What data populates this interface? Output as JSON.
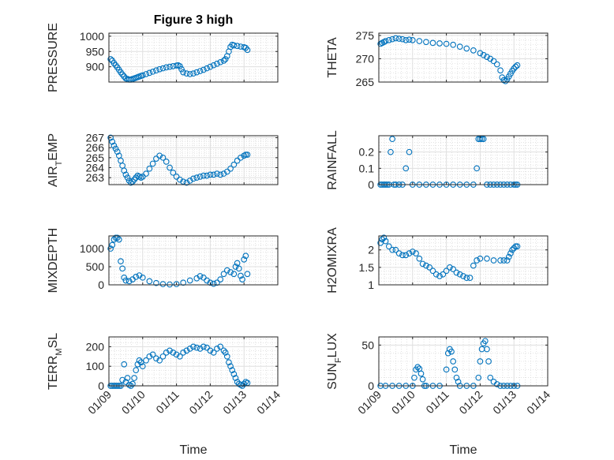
{
  "figure_title": "Figure 3 high",
  "x_axis": {
    "label": "Time",
    "ticks": [
      "01/09",
      "01/10",
      "01/11",
      "01/12",
      "01/13",
      "01/14"
    ],
    "xlim": [
      9,
      14
    ]
  },
  "marker_color": "#0072BD",
  "chart_data": [
    {
      "type": "scatter",
      "ylabel": "PRESSURE",
      "yticks": [
        900,
        950,
        1000
      ],
      "ylim": [
        850,
        1010
      ],
      "x": [
        9.05,
        9.1,
        9.15,
        9.2,
        9.25,
        9.3,
        9.35,
        9.4,
        9.45,
        9.5,
        9.55,
        9.6,
        9.65,
        9.7,
        9.75,
        9.8,
        9.85,
        9.9,
        9.95,
        10.0,
        10.1,
        10.2,
        10.3,
        10.4,
        10.5,
        10.6,
        10.7,
        10.8,
        10.9,
        11.0,
        11.05,
        11.1,
        11.15,
        11.2,
        11.3,
        11.4,
        11.5,
        11.6,
        11.7,
        11.8,
        11.9,
        12.0,
        12.1,
        12.2,
        12.3,
        12.4,
        12.45,
        12.5,
        12.55,
        12.6,
        12.65,
        12.7,
        12.8,
        12.9,
        13.0,
        13.05,
        13.1
      ],
      "y": [
        925,
        920,
        912,
        905,
        898,
        890,
        882,
        875,
        868,
        862,
        860,
        858,
        858,
        860,
        862,
        864,
        866,
        868,
        870,
        872,
        876,
        880,
        884,
        888,
        892,
        895,
        898,
        900,
        902,
        904,
        905,
        902,
        892,
        882,
        878,
        876,
        878,
        882,
        886,
        890,
        895,
        900,
        905,
        910,
        915,
        920,
        925,
        935,
        950,
        965,
        972,
        970,
        968,
        966,
        964,
        962,
        955
      ]
    },
    {
      "type": "scatter",
      "ylabel": "THETA",
      "yticks": [
        265,
        270,
        275
      ],
      "ylim": [
        265,
        275.5
      ],
      "x": [
        9.05,
        9.1,
        9.15,
        9.2,
        9.3,
        9.4,
        9.5,
        9.6,
        9.7,
        9.8,
        9.9,
        10.0,
        10.2,
        10.4,
        10.6,
        10.8,
        11.0,
        11.2,
        11.4,
        11.6,
        11.8,
        12.0,
        12.1,
        12.2,
        12.3,
        12.4,
        12.5,
        12.6,
        12.65,
        12.7,
        12.75,
        12.8,
        12.85,
        12.9,
        12.95,
        13.0,
        13.05,
        13.1
      ],
      "y": [
        273.2,
        273.4,
        273.6,
        273.8,
        274.0,
        274.2,
        274.4,
        274.3,
        274.2,
        274.0,
        274.1,
        274.0,
        273.8,
        273.6,
        273.4,
        273.3,
        273.2,
        273.0,
        272.6,
        272.2,
        271.8,
        271.2,
        270.8,
        270.4,
        270.0,
        269.5,
        268.8,
        267.5,
        266.0,
        265.4,
        265.2,
        265.6,
        266.2,
        266.8,
        267.4,
        267.9,
        268.3,
        268.6
      ]
    },
    {
      "type": "scatter",
      "ylabel": "AIR_TEMP",
      "yticks": [
        263,
        264,
        265,
        266,
        267
      ],
      "ylim": [
        262.3,
        267.2
      ],
      "x": [
        9.05,
        9.1,
        9.15,
        9.2,
        9.25,
        9.3,
        9.35,
        9.4,
        9.45,
        9.5,
        9.55,
        9.6,
        9.65,
        9.7,
        9.75,
        9.8,
        9.85,
        9.9,
        9.95,
        10.0,
        10.1,
        10.2,
        10.3,
        10.4,
        10.5,
        10.6,
        10.7,
        10.8,
        10.9,
        11.0,
        11.1,
        11.2,
        11.3,
        11.4,
        11.5,
        11.6,
        11.7,
        11.8,
        11.9,
        12.0,
        12.1,
        12.2,
        12.3,
        12.4,
        12.5,
        12.6,
        12.7,
        12.8,
        12.9,
        13.0,
        13.05,
        13.1
      ],
      "y": [
        267.0,
        266.6,
        266.2,
        265.9,
        265.6,
        265.2,
        264.7,
        264.2,
        263.7,
        263.3,
        263.0,
        262.7,
        262.5,
        262.6,
        262.8,
        263.0,
        263.2,
        263.1,
        263.0,
        263.1,
        263.4,
        263.9,
        264.4,
        264.9,
        265.2,
        265.0,
        264.6,
        264.0,
        263.5,
        263.1,
        262.8,
        262.6,
        262.5,
        262.7,
        262.9,
        263.0,
        263.1,
        263.2,
        263.2,
        263.3,
        263.3,
        263.4,
        263.3,
        263.4,
        263.6,
        263.9,
        264.3,
        264.7,
        265.0,
        265.2,
        265.3,
        265.3
      ]
    },
    {
      "type": "scatter",
      "ylabel": "RAINFALL",
      "yticks": [
        0,
        0.1,
        0.2
      ],
      "ylim": [
        0,
        0.3
      ],
      "x": [
        9.05,
        9.1,
        9.15,
        9.2,
        9.25,
        9.3,
        9.35,
        9.4,
        9.45,
        9.5,
        9.6,
        9.7,
        9.8,
        9.9,
        10.0,
        10.2,
        10.4,
        10.6,
        10.8,
        11.0,
        11.2,
        11.4,
        11.6,
        11.8,
        11.9,
        11.95,
        12.0,
        12.05,
        12.1,
        12.2,
        12.3,
        12.4,
        12.5,
        12.6,
        12.7,
        12.8,
        12.9,
        13.0,
        13.05,
        13.1
      ],
      "y": [
        0,
        0,
        0,
        0,
        0,
        0,
        0.2,
        0.28,
        0,
        0,
        0,
        0,
        0.1,
        0.2,
        0,
        0,
        0,
        0,
        0,
        0,
        0,
        0,
        0,
        0,
        0.1,
        0.28,
        0.28,
        0.28,
        0.28,
        0,
        0,
        0,
        0,
        0,
        0,
        0,
        0,
        0,
        0,
        0
      ]
    },
    {
      "type": "scatter",
      "ylabel": "MIXDEPTH",
      "yticks": [
        0,
        500,
        1000
      ],
      "ylim": [
        0,
        1350
      ],
      "x": [
        9.05,
        9.1,
        9.15,
        9.2,
        9.25,
        9.3,
        9.35,
        9.4,
        9.45,
        9.5,
        9.6,
        9.7,
        9.8,
        9.9,
        10.0,
        10.2,
        10.4,
        10.6,
        10.8,
        11.0,
        11.2,
        11.4,
        11.6,
        11.7,
        11.8,
        11.9,
        12.0,
        12.1,
        12.2,
        12.3,
        12.4,
        12.5,
        12.6,
        12.7,
        12.75,
        12.8,
        12.85,
        12.9,
        12.95,
        13.0,
        13.05,
        13.1
      ],
      "y": [
        1000,
        1100,
        1250,
        1300,
        1300,
        1250,
        650,
        450,
        200,
        120,
        100,
        150,
        220,
        260,
        200,
        100,
        50,
        20,
        10,
        20,
        60,
        120,
        180,
        240,
        200,
        120,
        60,
        30,
        60,
        150,
        300,
        400,
        350,
        300,
        500,
        600,
        450,
        250,
        150,
        700,
        800,
        300
      ]
    },
    {
      "type": "scatter",
      "ylabel": "H2OMIXRA",
      "yticks": [
        1,
        1.5,
        2
      ],
      "ylim": [
        1,
        2.4
      ],
      "x": [
        9.05,
        9.1,
        9.15,
        9.2,
        9.3,
        9.4,
        9.5,
        9.6,
        9.7,
        9.8,
        9.9,
        10.0,
        10.1,
        10.2,
        10.3,
        10.4,
        10.5,
        10.6,
        10.7,
        10.8,
        10.9,
        11.0,
        11.1,
        11.2,
        11.3,
        11.4,
        11.5,
        11.6,
        11.7,
        11.8,
        11.9,
        12.0,
        12.2,
        12.4,
        12.6,
        12.7,
        12.8,
        12.85,
        12.9,
        12.95,
        13.0,
        13.05,
        13.1
      ],
      "y": [
        2.2,
        2.3,
        2.35,
        2.25,
        2.1,
        2.0,
        2.0,
        1.9,
        1.85,
        1.85,
        1.9,
        1.95,
        1.9,
        1.75,
        1.6,
        1.55,
        1.5,
        1.4,
        1.3,
        1.25,
        1.3,
        1.4,
        1.5,
        1.45,
        1.35,
        1.3,
        1.25,
        1.2,
        1.2,
        1.55,
        1.7,
        1.75,
        1.75,
        1.7,
        1.7,
        1.7,
        1.7,
        1.8,
        1.9,
        2.0,
        2.05,
        2.1,
        2.1
      ]
    },
    {
      "type": "scatter",
      "ylabel": "TERR_MSL",
      "yticks": [
        0,
        100,
        200
      ],
      "ylim": [
        0,
        250
      ],
      "x": [
        9.05,
        9.1,
        9.15,
        9.2,
        9.25,
        9.3,
        9.35,
        9.4,
        9.45,
        9.5,
        9.55,
        9.6,
        9.65,
        9.7,
        9.75,
        9.8,
        9.85,
        9.9,
        9.95,
        10.0,
        10.1,
        10.2,
        10.3,
        10.4,
        10.5,
        10.6,
        10.7,
        10.8,
        10.9,
        11.0,
        11.1,
        11.2,
        11.3,
        11.4,
        11.5,
        11.6,
        11.7,
        11.8,
        11.9,
        12.0,
        12.1,
        12.2,
        12.3,
        12.4,
        12.45,
        12.5,
        12.55,
        12.6,
        12.65,
        12.7,
        12.75,
        12.8,
        12.85,
        12.9,
        12.95,
        13.0,
        13.05,
        13.1
      ],
      "y": [
        0,
        0,
        0,
        0,
        0,
        0,
        0,
        30,
        110,
        20,
        40,
        5,
        0,
        10,
        40,
        80,
        110,
        130,
        120,
        100,
        130,
        150,
        160,
        140,
        130,
        150,
        170,
        180,
        170,
        160,
        150,
        170,
        180,
        190,
        200,
        195,
        190,
        200,
        195,
        180,
        170,
        190,
        200,
        180,
        170,
        150,
        120,
        100,
        80,
        60,
        40,
        20,
        10,
        5,
        0,
        10,
        20,
        15
      ]
    },
    {
      "type": "scatter",
      "ylabel": "SUN_FLUX",
      "yticks": [
        0,
        50
      ],
      "ylim": [
        0,
        60
      ],
      "x": [
        9.05,
        9.2,
        9.4,
        9.6,
        9.8,
        10.0,
        10.05,
        10.1,
        10.15,
        10.2,
        10.25,
        10.3,
        10.35,
        10.4,
        10.6,
        10.8,
        11.0,
        11.05,
        11.1,
        11.15,
        11.2,
        11.25,
        11.3,
        11.35,
        11.4,
        11.6,
        11.8,
        11.95,
        12.0,
        12.05,
        12.1,
        12.15,
        12.2,
        12.25,
        12.3,
        12.4,
        12.5,
        12.6,
        12.7,
        12.8,
        12.9,
        13.0,
        13.1
      ],
      "y": [
        0,
        0,
        0,
        0,
        0,
        0,
        10,
        20,
        23,
        21,
        15,
        8,
        0,
        0,
        0,
        0,
        20,
        40,
        45,
        42,
        30,
        20,
        10,
        5,
        0,
        0,
        0,
        10,
        30,
        45,
        52,
        55,
        45,
        30,
        10,
        5,
        2,
        0,
        0,
        0,
        0,
        0,
        0
      ]
    }
  ]
}
